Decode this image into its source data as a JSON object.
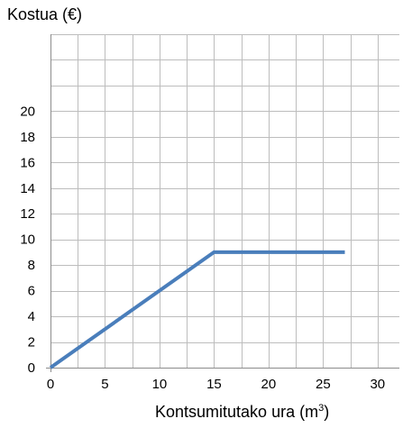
{
  "chart_data": {
    "type": "line",
    "ylabel": "Kostua (€)",
    "xlabel_main": "Kontsumitutako ura (m",
    "xlabel_sup": "3",
    "xlabel_close": ")",
    "xlim": [
      0,
      32
    ],
    "ylim": [
      0,
      26
    ],
    "x_ticks": [
      0,
      5,
      10,
      15,
      20,
      25,
      30
    ],
    "y_ticks": [
      0,
      2,
      4,
      6,
      8,
      10,
      12,
      14,
      16,
      18,
      20
    ],
    "x_grid_step": 2.5,
    "y_grid_step": 2,
    "grid": true,
    "line_color": "#4a7ebb",
    "grid_color": "#bdbdbd",
    "series": [
      {
        "x": [
          0,
          15,
          27
        ],
        "y": [
          0,
          9,
          9
        ]
      }
    ]
  }
}
